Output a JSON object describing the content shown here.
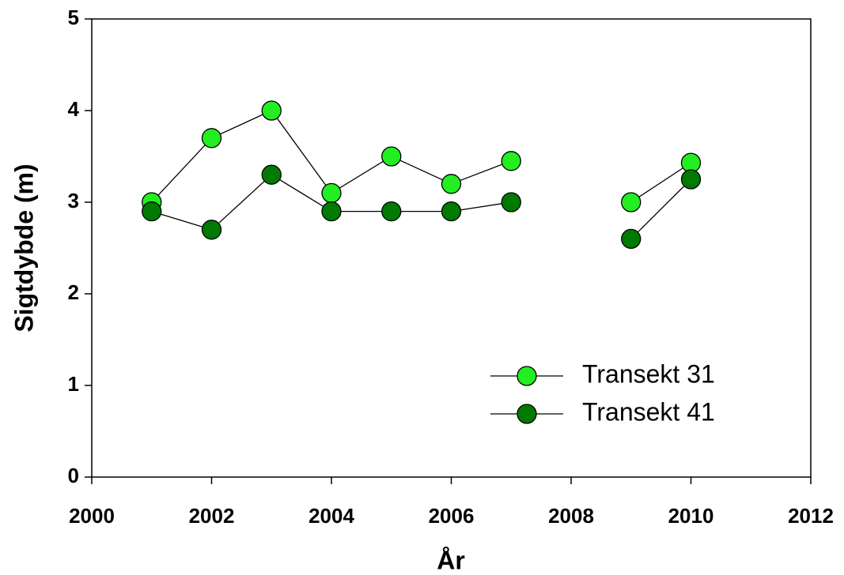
{
  "chart_data": {
    "type": "line",
    "x_label": "År",
    "y_label": "Sigtdybde (m)",
    "x": [
      2001,
      2002,
      2003,
      2004,
      2005,
      2006,
      2007,
      2008,
      2009,
      2010
    ],
    "series": [
      {
        "name": "Transekt 31",
        "color": "#22ee22",
        "values": [
          3.0,
          3.7,
          4.0,
          3.1,
          3.5,
          3.2,
          3.45,
          null,
          3.0,
          3.43
        ]
      },
      {
        "name": "Transekt 41",
        "color": "#007a00",
        "values": [
          2.9,
          2.7,
          3.3,
          2.9,
          2.9,
          2.9,
          3.0,
          null,
          2.6,
          3.25
        ]
      }
    ],
    "xlim": [
      2000,
      2012
    ],
    "xticks": [
      2000,
      2002,
      2004,
      2006,
      2008,
      2010,
      2012
    ],
    "ylim": [
      0,
      5
    ],
    "yticks": [
      0,
      1,
      2,
      3,
      4,
      5
    ],
    "grid": false,
    "legend": "lower right"
  }
}
